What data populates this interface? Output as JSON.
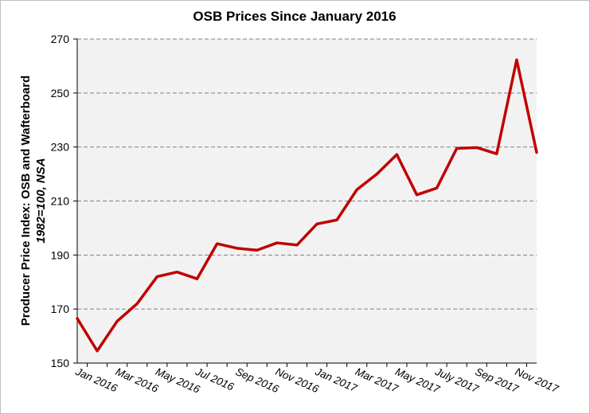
{
  "chart_data": {
    "type": "line",
    "title": "OSB Prices Since January 2016",
    "xlabel": "",
    "ylabel": "Producer Price Index: OSB and Wafterboard",
    "ylabel_sub": "1982=100, NSA",
    "ylim": [
      150,
      270
    ],
    "yticks": [
      150,
      170,
      190,
      210,
      230,
      250,
      270
    ],
    "grid": "horizontal dashed",
    "legend": "none",
    "line_color": "#C00000",
    "plot_background": "#F2F2F2",
    "x": [
      "Jan 2016",
      "Feb 2016",
      "Mar 2016",
      "Apr 2016",
      "May 2016",
      "Jun 2016",
      "Jul 2016",
      "Aug 2016",
      "Sep 2016",
      "Oct 2016",
      "Nov 2016",
      "Dec 2016",
      "Jan 2017",
      "Feb 2017",
      "Mar 2017",
      "Apr 2017",
      "May 2017",
      "Jun 2017",
      "July 2017",
      "Aug 2017",
      "Sep 2017",
      "Oct 2017",
      "Nov 2017",
      "Dec 2017"
    ],
    "xtick_labels": [
      "Jan 2016",
      "Mar 2016",
      "May 2016",
      "Jul 2016",
      "Sep 2016",
      "Nov 2016",
      "Jan 2017",
      "Mar 2017",
      "May 2017",
      "July 2017",
      "Sep 2017",
      "Nov 2017"
    ],
    "series": [
      {
        "values": [
          166.5,
          154.5,
          165.5,
          172,
          182,
          183.7,
          181.2,
          194.2,
          192.5,
          191.8,
          194.5,
          193.7,
          201.5,
          203,
          214.2,
          220,
          227.2,
          212.3,
          214.8,
          229.5,
          229.8,
          227.5,
          262.3,
          228
        ]
      }
    ]
  }
}
